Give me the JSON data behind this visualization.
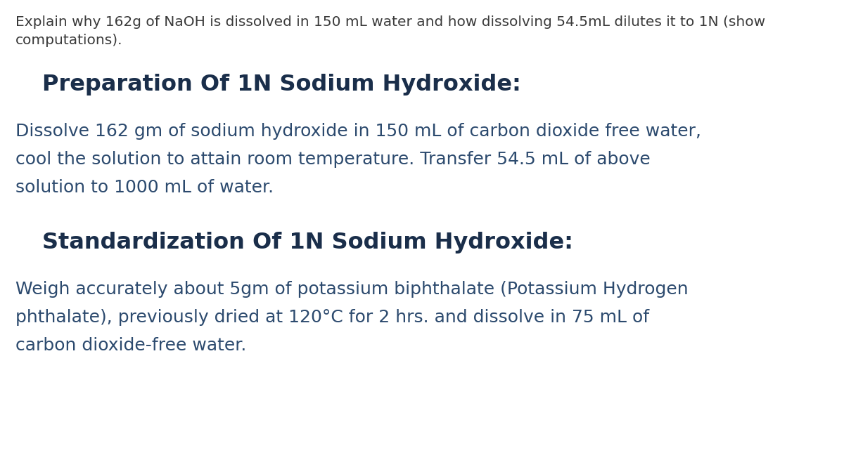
{
  "background_color": "#ffffff",
  "prompt_text": "Explain why 162g of NaOH is dissolved in 150 mL water and how dissolving 54.5mL dilutes it to 1N (show",
  "prompt_text2": "computations).",
  "prompt_color": "#3a3a3a",
  "prompt_fontsize": 14.5,
  "heading1": "Preparation Of 1N Sodium Hydroxide:",
  "heading1_color": "#1a2e4a",
  "heading1_fontsize": 23,
  "body1_line1": "Dissolve 162 gm of sodium hydroxide in 150 mL of carbon dioxide free water,",
  "body1_line2": "cool the solution to attain room temperature. Transfer 54.5 mL of above",
  "body1_line3": "solution to 1000 mL of water.",
  "body1_color": "#2c4a6e",
  "body1_fontsize": 18,
  "heading2": "Standardization Of 1N Sodium Hydroxide:",
  "heading2_color": "#1a2e4a",
  "heading2_fontsize": 23,
  "body2_line1": "Weigh accurately about 5gm of potassium biphthalate (Potassium Hydrogen",
  "body2_line2": "phthalate), previously dried at 120°C for 2 hrs. and dissolve in 75 mL of",
  "body2_line3": "carbon dioxide-free water.",
  "body2_color": "#2c4a6e",
  "body2_fontsize": 18
}
